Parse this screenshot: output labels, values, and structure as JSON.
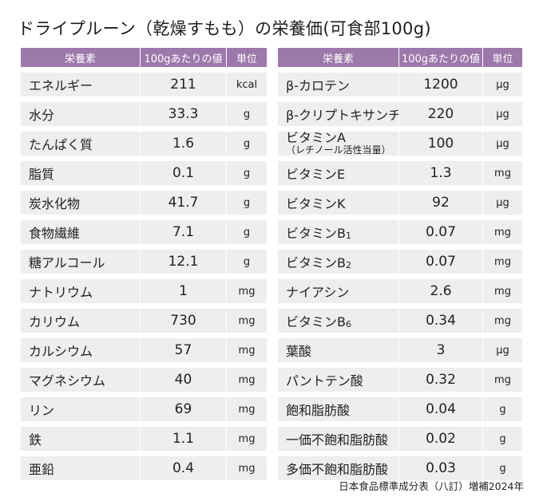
{
  "title": "ドライプルーン（乾燥すもも）の栄養価(可食部100g)",
  "headers": {
    "name": "栄養素",
    "value": "100gあたりの値",
    "unit": "単位"
  },
  "left_rows": [
    {
      "name": "エネルギー",
      "value": "211",
      "unit": "kcal"
    },
    {
      "name": "水分",
      "value": "33.3",
      "unit": "g"
    },
    {
      "name": "たんぱく質",
      "value": "1.6",
      "unit": "g"
    },
    {
      "name": "脂質",
      "value": "0.1",
      "unit": "g"
    },
    {
      "name": "炭水化物",
      "value": "41.7",
      "unit": "g"
    },
    {
      "name": "食物繊維",
      "value": "7.1",
      "unit": "g"
    },
    {
      "name": "糖アルコール",
      "value": "12.1",
      "unit": "g"
    },
    {
      "name": "ナトリウム",
      "value": "1",
      "unit": "mg"
    },
    {
      "name": "カリウム",
      "value": "730",
      "unit": "mg"
    },
    {
      "name": "カルシウム",
      "value": "57",
      "unit": "mg"
    },
    {
      "name": "マグネシウム",
      "value": "40",
      "unit": "mg"
    },
    {
      "name": "リン",
      "value": "69",
      "unit": "mg"
    },
    {
      "name": "鉄",
      "value": "1.1",
      "unit": "mg"
    },
    {
      "name": "亜鉛",
      "value": "0.4",
      "unit": "mg"
    }
  ],
  "right_rows": [
    {
      "name": "β-カロテン",
      "value": "1200",
      "unit": "μg"
    },
    {
      "name": "β-クリプトキサンチン",
      "value": "220",
      "unit": "μg"
    },
    {
      "name": "ビタミンA",
      "name_sub": "（レチノール活性当量）",
      "value": "100",
      "unit": "μg"
    },
    {
      "name": "ビタミンE",
      "value": "1.3",
      "unit": "mg"
    },
    {
      "name": "ビタミンK",
      "value": "92",
      "unit": "μg"
    },
    {
      "name": "ビタミンB",
      "name_subscript": "1",
      "value": "0.07",
      "unit": "mg"
    },
    {
      "name": "ビタミンB",
      "name_subscript": "2",
      "value": "0.07",
      "unit": "mg"
    },
    {
      "name": "ナイアシン",
      "value": "2.6",
      "unit": "mg"
    },
    {
      "name": "ビタミンB",
      "name_subscript": "6",
      "value": "0.34",
      "unit": "mg"
    },
    {
      "name": "葉酸",
      "value": "3",
      "unit": "μg"
    },
    {
      "name": "パントテン酸",
      "value": "0.32",
      "unit": "mg"
    },
    {
      "name": "飽和脂肪酸",
      "value": "0.04",
      "unit": "g"
    },
    {
      "name": "一価不飽和脂肪酸",
      "value": "0.02",
      "unit": "g"
    },
    {
      "name": "多価不飽和脂肪酸",
      "value": "0.03",
      "unit": "g"
    }
  ],
  "source": "日本食品標準成分表（八訂）増補2024年",
  "colors": {
    "header_bg": "#9d78ab",
    "row_bg": "#eeeeee"
  }
}
